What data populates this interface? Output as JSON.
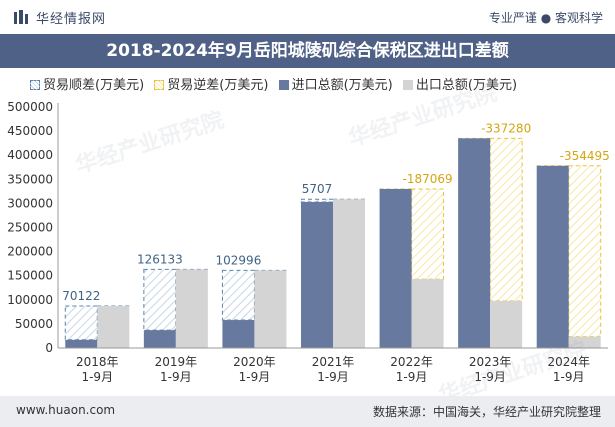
{
  "header": {
    "brand": "华经情报网",
    "tags": "专业严谨 ● 客观科学"
  },
  "footer": {
    "url": "www.huaon.com",
    "source": "数据来源：中国海关，华经产业研究院整理"
  },
  "watermark": "华经产业研究院",
  "colors": {
    "import": "#67799f",
    "export": "#d4d4d4",
    "surplus": "#5b84a8",
    "deficit": "#e8c23c",
    "title_bar": "#4f6187"
  },
  "chart_data": {
    "type": "bar",
    "title": "2018-2024年9月岳阳城陵矶综合保税区进出口差额",
    "categories": [
      "2018年\n1-9月",
      "2019年\n1-9月",
      "2020年\n1-9月",
      "2021年\n1-9月",
      "2022年\n1-9月",
      "2023年\n1-9月",
      "2024年\n1-9月"
    ],
    "legend": [
      "贸易顺差(万美元)",
      "贸易逆差(万美元)",
      "进口总额(万美元)",
      "出口总额(万美元)"
    ],
    "series": [
      {
        "name": "进口总额(万美元)",
        "values": [
          17000,
          37000,
          58000,
          303000,
          330000,
          435000,
          378000
        ]
      },
      {
        "name": "出口总额(万美元)",
        "values": [
          87122,
          163133,
          160996,
          308707,
          142931,
          97720,
          23505
        ]
      }
    ],
    "balance": [
      70122,
      126133,
      102996,
      5707,
      -187069,
      -337280,
      -354495
    ],
    "balance_labels": [
      "70122",
      "126133",
      "102996",
      "5707",
      "-187069",
      "-337280",
      "-354495"
    ],
    "y_ticks": [
      "0",
      "50000",
      "100000",
      "150000",
      "200000",
      "250000",
      "300000",
      "350000",
      "400000",
      "450000",
      "500000"
    ],
    "ylim": [
      0,
      500000
    ],
    "grid": false,
    "legend_position": "top-left"
  }
}
